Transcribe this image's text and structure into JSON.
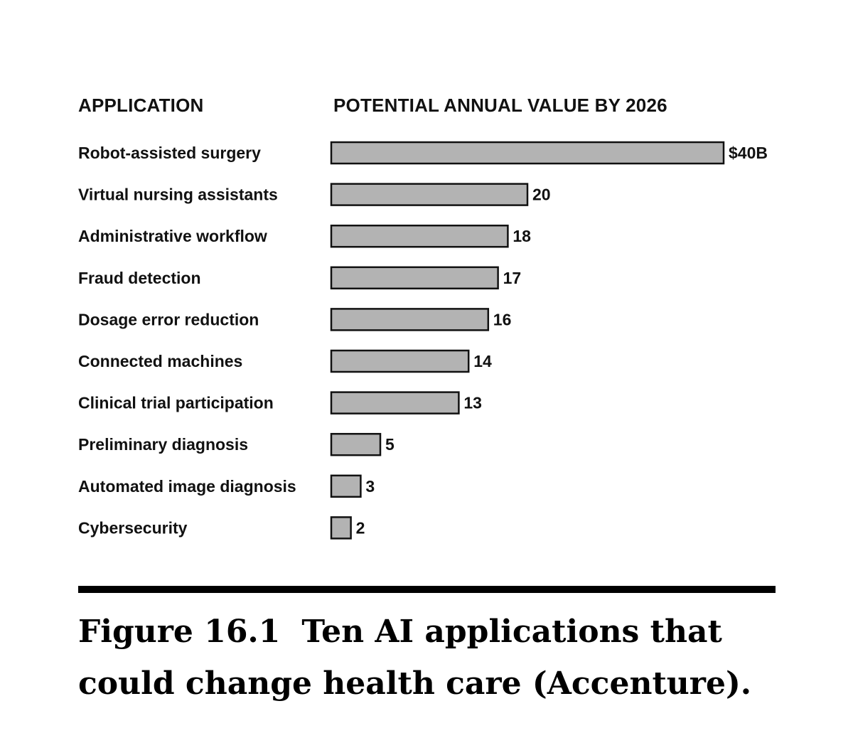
{
  "chart_data": {
    "type": "bar",
    "orientation": "horizontal",
    "category_header": "APPLICATION",
    "value_header": "POTENTIAL ANNUAL VALUE BY 2026",
    "categories": [
      "Robot-assisted surgery",
      "Virtual nursing assistants",
      "Administrative workflow",
      "Fraud detection",
      "Dosage error reduction",
      "Connected machines",
      "Clinical trial participation",
      "Preliminary diagnosis",
      "Automated image diagnosis",
      "Cybersecurity"
    ],
    "values": [
      40,
      20,
      18,
      17,
      16,
      14,
      13,
      5,
      3,
      2
    ],
    "value_labels": [
      "$40B",
      "20",
      "18",
      "17",
      "16",
      "14",
      "13",
      "5",
      "3",
      "2"
    ],
    "xlim": [
      0,
      40
    ],
    "grid": false,
    "bar_color": "#b3b3b3",
    "bar_outline_color": "#111111"
  },
  "caption": {
    "label": "Figure 16.1",
    "line1": "Ten AI applications that",
    "line2": "could change health care (Accenture)."
  }
}
